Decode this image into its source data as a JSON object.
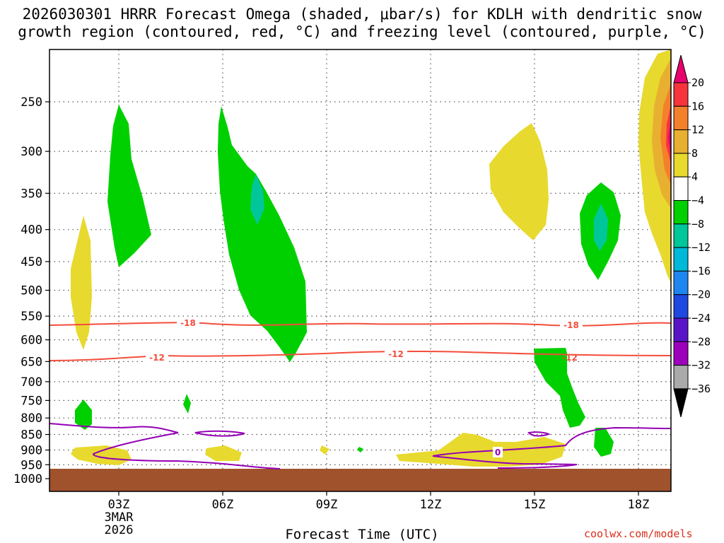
{
  "title_line1": "2026030301 HRRR Forecast Omega (shaded, μbar/s) for KDLH with dendritic snow",
  "title_line2": "growth region (contoured, red, °C) and freezing level (contoured, purple, °C)",
  "credit": "coolwx.com/models",
  "chart_data": {
    "type": "time-height cross-section",
    "xlabel": "Forecast Time (UTC)",
    "x_ticks": [
      "03Z",
      "06Z",
      "09Z",
      "12Z",
      "15Z",
      "18Z"
    ],
    "x_date_label": [
      "3MAR",
      "2026"
    ],
    "y_ticks": [
      250,
      300,
      350,
      400,
      450,
      500,
      550,
      600,
      650,
      700,
      750,
      800,
      850,
      900,
      950,
      1000
    ],
    "ylabel": "",
    "colorbar": {
      "units": "μbar/s",
      "levels": [
        20,
        16,
        12,
        8,
        4,
        -4,
        -8,
        -12,
        -16,
        -20,
        -24,
        -28,
        -32,
        -36
      ],
      "colors": [
        "#e8006e",
        "#f7343b",
        "#f4802c",
        "#e8b030",
        "#e8d92e",
        "#ffffff",
        "#00d000",
        "#00c79a",
        "#00b9d8",
        "#1e86f0",
        "#1f48e0",
        "#5a14c8",
        "#9c00bb",
        "#aaaaaa",
        "#000000"
      ]
    },
    "contours": [
      {
        "label": "-18",
        "color": "#f44d3c"
      },
      {
        "label": "-12",
        "color": "#f44d3c"
      },
      {
        "label": "0",
        "color": "#9400b4"
      }
    ],
    "ground_color": "#a0522d"
  }
}
